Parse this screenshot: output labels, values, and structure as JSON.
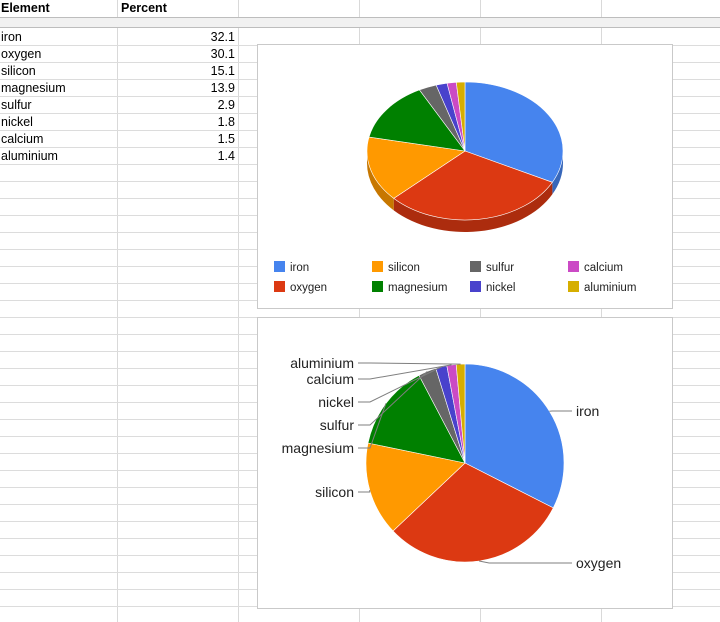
{
  "sheet": {
    "headers": [
      "Element",
      "Percent"
    ],
    "rows": [
      [
        "iron",
        "32.1"
      ],
      [
        "oxygen",
        "30.1"
      ],
      [
        "silicon",
        "15.1"
      ],
      [
        "magnesium",
        "13.9"
      ],
      [
        "sulfur",
        "2.9"
      ],
      [
        "nickel",
        "1.8"
      ],
      [
        "calcium",
        "1.5"
      ],
      [
        "aluminium",
        "1.4"
      ]
    ]
  },
  "chart_data": [
    {
      "type": "pie",
      "style": "3d",
      "categories": [
        "iron",
        "oxygen",
        "silicon",
        "magnesium",
        "sulfur",
        "nickel",
        "calcium",
        "aluminium"
      ],
      "values": [
        32.1,
        30.1,
        15.1,
        13.9,
        2.9,
        1.8,
        1.5,
        1.4
      ],
      "colors": [
        "#4684ee",
        "#dc3912",
        "#ff9900",
        "#008000",
        "#666666",
        "#4942cc",
        "#cb4ac5",
        "#d6ae00"
      ],
      "legend": "bottom",
      "title": ""
    },
    {
      "type": "pie",
      "style": "2d",
      "categories": [
        "iron",
        "oxygen",
        "silicon",
        "magnesium",
        "sulfur",
        "nickel",
        "calcium",
        "aluminium"
      ],
      "values": [
        32.1,
        30.1,
        15.1,
        13.9,
        2.9,
        1.8,
        1.5,
        1.4
      ],
      "colors": [
        "#4684ee",
        "#dc3912",
        "#ff9900",
        "#008000",
        "#666666",
        "#4942cc",
        "#cb4ac5",
        "#d6ae00"
      ],
      "legend": "labeled",
      "title": ""
    }
  ]
}
